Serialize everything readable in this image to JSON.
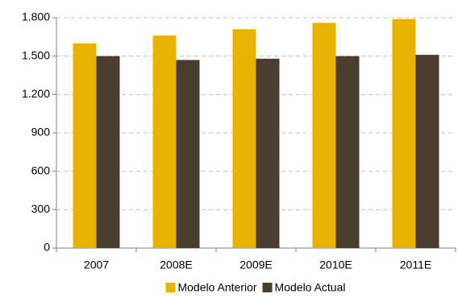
{
  "chart_data": {
    "type": "bar",
    "categories": [
      "2007",
      "2008E",
      "2009E",
      "2010E",
      "2011E"
    ],
    "series": [
      {
        "name": "Modelo Anterior",
        "color": "#e8b200",
        "values": [
          1600,
          1660,
          1710,
          1760,
          1790
        ]
      },
      {
        "name": "Modelo Actual",
        "color": "#4b3e30",
        "values": [
          1500,
          1470,
          1480,
          1500,
          1510
        ]
      }
    ],
    "ylim": [
      0,
      1800
    ],
    "yticks": [
      0,
      300,
      600,
      900,
      {
        "value": 1200,
        "label": "1.200"
      },
      {
        "value": 1500,
        "label": "1.500"
      },
      {
        "value": 1800,
        "label": "1.800"
      }
    ],
    "grid": true,
    "legend": "bottom"
  }
}
